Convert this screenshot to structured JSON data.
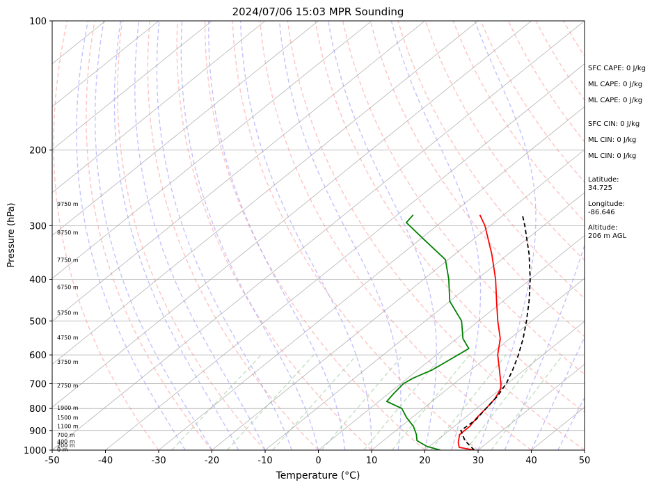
{
  "chart_data": {
    "type": "line",
    "title": "2024/07/06 15:03 MPR Sounding",
    "xlabel": "Temperature (°C)",
    "ylabel": "Pressure (hPa)",
    "xlim": [
      -50,
      50
    ],
    "ylim": [
      1000,
      100
    ],
    "y_scale": "log",
    "grid": true,
    "x_ticks": [
      -50,
      -40,
      -30,
      -20,
      -10,
      0,
      10,
      20,
      30,
      40,
      50
    ],
    "y_ticks": [
      1000,
      900,
      800,
      700,
      600,
      500,
      400,
      300,
      200,
      100
    ],
    "skew": true,
    "series": [
      {
        "color": "#ff0000",
        "points": [
          [
            1000,
            29.3
          ],
          [
            985,
            25.8
          ],
          [
            960,
            24.5
          ],
          [
            920,
            22.9
          ],
          [
            880,
            22.9
          ],
          [
            840,
            22.2
          ],
          [
            800,
            21.8
          ],
          [
            760,
            21.2
          ],
          [
            720,
            20.0
          ],
          [
            700,
            18.8
          ],
          [
            650,
            15.3
          ],
          [
            600,
            11.5
          ],
          [
            550,
            8.2
          ],
          [
            500,
            3.6
          ],
          [
            450,
            -1.2
          ],
          [
            400,
            -6.5
          ],
          [
            350,
            -13.0
          ],
          [
            300,
            -21.0
          ],
          [
            283,
            -24.5
          ]
        ]
      },
      {
        "color": "#008000",
        "points": [
          [
            1000,
            22.9
          ],
          [
            980,
            19.5
          ],
          [
            950,
            16.3
          ],
          [
            920,
            14.8
          ],
          [
            880,
            12.3
          ],
          [
            840,
            9.0
          ],
          [
            800,
            6.0
          ],
          [
            770,
            1.5
          ],
          [
            740,
            1.0
          ],
          [
            700,
            0.5
          ],
          [
            680,
            1.0
          ],
          [
            650,
            2.7
          ],
          [
            620,
            3.5
          ],
          [
            580,
            4.6
          ],
          [
            550,
            1.2
          ],
          [
            500,
            -3.2
          ],
          [
            450,
            -10.0
          ],
          [
            400,
            -15.3
          ],
          [
            360,
            -20.5
          ],
          [
            320,
            -30.0
          ],
          [
            295,
            -36.5
          ],
          [
            283,
            -37.0
          ]
        ]
      },
      {
        "color": "#000000",
        "dashed": true,
        "points": [
          [
            1000,
            29.3
          ],
          [
            950,
            25.3
          ],
          [
            900,
            22.2
          ],
          [
            850,
            22.5
          ],
          [
            800,
            21.8
          ],
          [
            750,
            21.1
          ],
          [
            700,
            19.8
          ],
          [
            650,
            17.8
          ],
          [
            600,
            15.4
          ],
          [
            550,
            12.5
          ],
          [
            500,
            9.0
          ],
          [
            450,
            4.9
          ],
          [
            400,
            0.0
          ],
          [
            350,
            -6.0
          ],
          [
            300,
            -13.5
          ],
          [
            283,
            -16.5
          ]
        ]
      }
    ],
    "height_labels": [
      "0 m",
      "200 m",
      "400 m",
      "700 m",
      "1100 m",
      "1500 m",
      "1900 m",
      "2750 m",
      "3750 m",
      "4750 m",
      "5750 m",
      "6750 m",
      "7750 m",
      "8750 m",
      "9750 m"
    ],
    "height_label_pressures": [
      1000,
      978,
      958,
      925,
      883,
      842,
      800,
      710,
      625,
      548,
      480,
      418,
      362,
      312,
      268
    ]
  },
  "side_panel": {
    "sfc_cape": "SFC CAPE: 0 J/kg",
    "ml_cape_1": "ML CAPE: 0 J/kg",
    "ml_cape_2": "ML CAPE: 0 J/kg",
    "sfc_cin": "SFC CIN: 0 J/kg",
    "ml_cin_1": "ML CIN: 0 J/kg",
    "ml_cin_2": "ML CIN: 0 J/kg",
    "latitude": "Latitude:\n34.725",
    "longitude": "Longitude:\n-86.646",
    "altitude": "Altitude:\n206 m AGL"
  },
  "colors": {
    "temperature": "#ff0000",
    "dewpoint": "#008000",
    "parcel": "#000000",
    "dry_adiabat": "#ff9999",
    "moist_adiabat": "#9999ff",
    "mixing_ratio": "#99cc99",
    "isotherm": "#999999"
  }
}
